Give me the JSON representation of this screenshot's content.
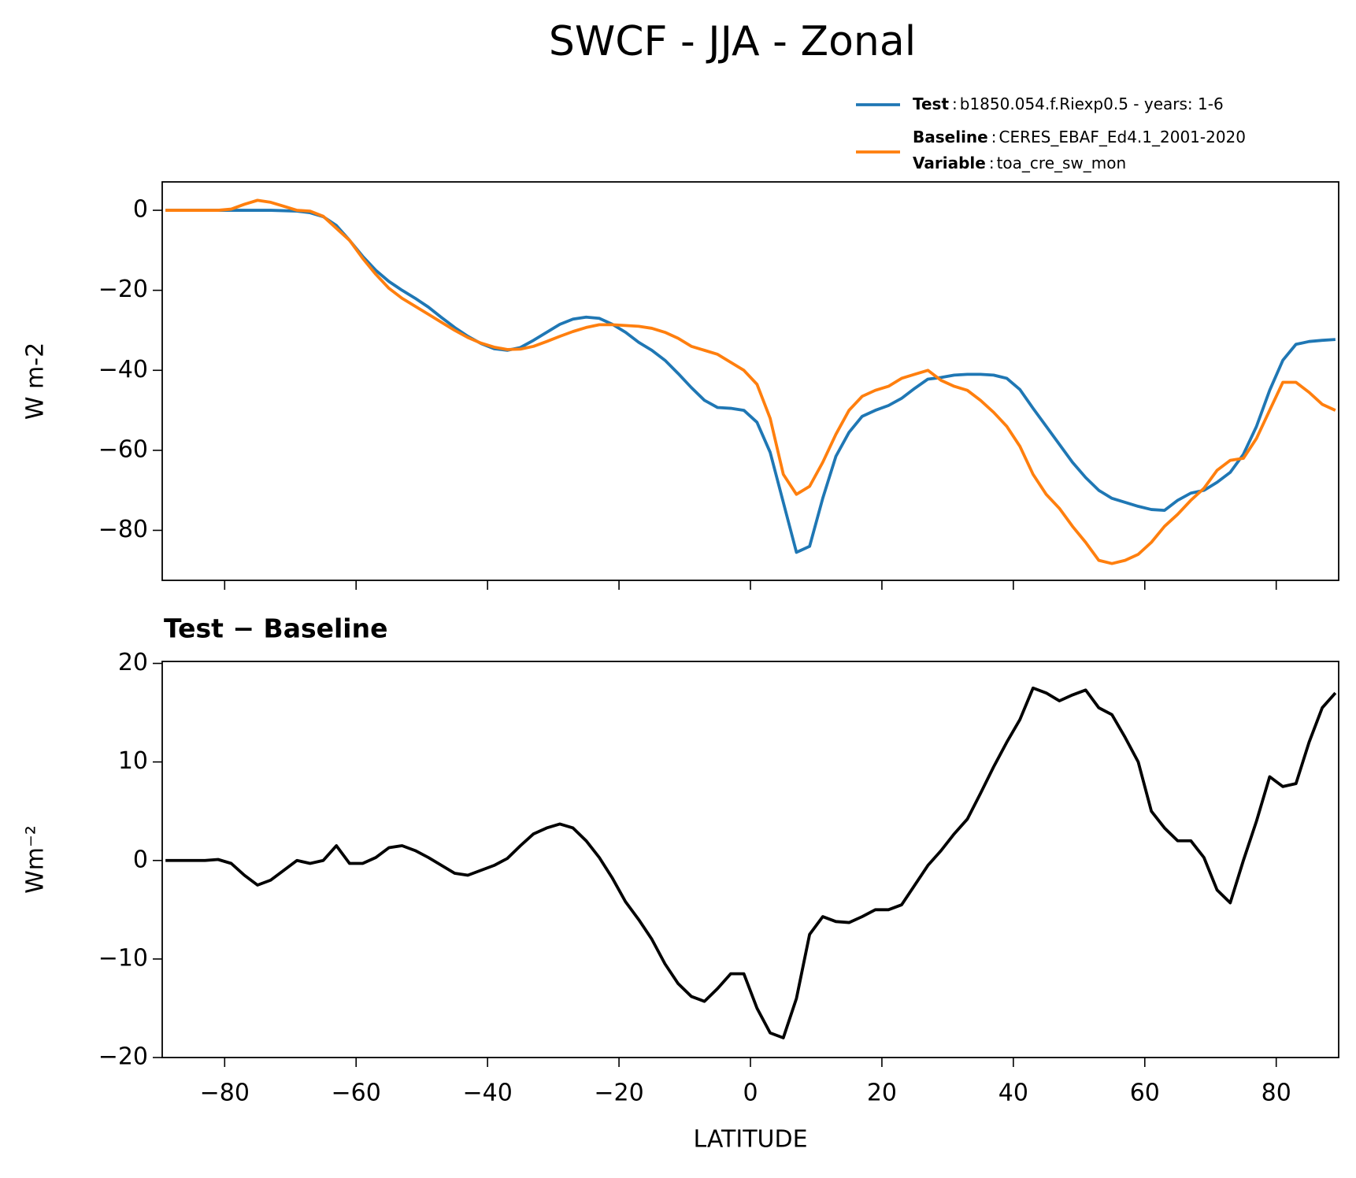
{
  "title": "SWCF - JJA - Zonal",
  "chart_data": [
    {
      "type": "line",
      "ylabel": "W m-2",
      "legend": {
        "separator": ":",
        "extra": {
          "name": "Variable",
          "description": "toa_cre_sw_mon"
        }
      },
      "x": [
        -89,
        -87,
        -85,
        -83,
        -81,
        -79,
        -77,
        -75,
        -73,
        -71,
        -69,
        -67,
        -65,
        -63,
        -61,
        -59,
        -57,
        -55,
        -53,
        -51,
        -49,
        -47,
        -45,
        -43,
        -41,
        -39,
        -37,
        -35,
        -33,
        -31,
        -29,
        -27,
        -25,
        -23,
        -21,
        -19,
        -17,
        -15,
        -13,
        -11,
        -9,
        -7,
        -5,
        -3,
        -1,
        1,
        3,
        5,
        7,
        9,
        11,
        13,
        15,
        17,
        19,
        21,
        23,
        25,
        27,
        29,
        31,
        33,
        35,
        37,
        39,
        41,
        43,
        45,
        47,
        49,
        51,
        53,
        55,
        57,
        59,
        61,
        63,
        65,
        67,
        69,
        71,
        73,
        75,
        77,
        79,
        81,
        83,
        85,
        87,
        89
      ],
      "series": [
        {
          "name": "Test",
          "description": "b1850.054.f.Riexp0.5 - years: 1-6",
          "color": "#1f77b4",
          "values": [
            0,
            0,
            0,
            0,
            0,
            0,
            0,
            0,
            0,
            -0.1,
            -0.2,
            -0.6,
            -1.6,
            -3.8,
            -7.5,
            -11.5,
            -15,
            -17.8,
            -20,
            -22,
            -24.2,
            -26.8,
            -29.3,
            -31.5,
            -33.3,
            -34.6,
            -35,
            -34.3,
            -32.5,
            -30.5,
            -28.5,
            -27.2,
            -26.7,
            -27,
            -28.5,
            -30.5,
            -33,
            -35,
            -37.5,
            -40.8,
            -44.3,
            -47.5,
            -49.3,
            -49.5,
            -50,
            -53,
            -60.5,
            -73,
            -85.5,
            -84,
            -72,
            -61.5,
            -55.5,
            -51.5,
            -50,
            -48.8,
            -47,
            -44.5,
            -42.2,
            -41.8,
            -41.2,
            -41,
            -41,
            -41.2,
            -42,
            -44.8,
            -49.5,
            -54,
            -58.5,
            -63,
            -66.8,
            -70,
            -72,
            -73,
            -74,
            -74.8,
            -75,
            -72.5,
            -70.7,
            -70,
            -68,
            -65.5,
            -61,
            -54,
            -45,
            -37.5,
            -33.5,
            -32.8,
            -32.5,
            -32.3
          ]
        },
        {
          "name": "Baseline",
          "description": "CERES_EBAF_Ed4.1_2001-2020",
          "color": "#ff7f0e",
          "values": [
            0,
            0,
            0,
            0,
            0,
            0.3,
            1.5,
            2.5,
            2,
            1,
            0,
            -0.2,
            -1.5,
            -4.5,
            -7.5,
            -12,
            -16,
            -19.5,
            -22,
            -24,
            -26,
            -28,
            -30,
            -31.8,
            -33.2,
            -34.2,
            -34.8,
            -34.7,
            -34,
            -32.8,
            -31.5,
            -30.3,
            -29.3,
            -28.6,
            -28.6,
            -28.8,
            -29,
            -29.5,
            -30.5,
            -32,
            -34,
            -35,
            -36,
            -38,
            -40,
            -43.5,
            -52,
            -66,
            -71,
            -69,
            -63,
            -56,
            -50,
            -46.5,
            -45,
            -44,
            -42,
            -41,
            -40,
            -42.5,
            -44,
            -45,
            -47.5,
            -50.5,
            -54,
            -59,
            -66,
            -71,
            -74.5,
            -79,
            -83,
            -87.5,
            -88.3,
            -87.5,
            -86,
            -83,
            -79,
            -76,
            -72.5,
            -69.5,
            -65,
            -62.5,
            -62,
            -57,
            -50,
            -43,
            -43,
            -45.5,
            -48.5,
            -50
          ]
        }
      ],
      "xlim": [
        -89.5,
        89.5
      ],
      "ylim": [
        -92.5,
        7.1
      ],
      "yticks": [
        {
          "value": -80,
          "label": "−80"
        },
        {
          "value": -60,
          "label": "−60"
        },
        {
          "value": -40,
          "label": "−40"
        },
        {
          "value": -20,
          "label": "−20"
        },
        0
      ]
    },
    {
      "type": "line",
      "title": "Test − Baseline",
      "xlabel": "LATITUDE",
      "ylabel": "Wm⁻²",
      "x": [
        -89,
        -87,
        -85,
        -83,
        -81,
        -79,
        -77,
        -75,
        -73,
        -71,
        -69,
        -67,
        -65,
        -63,
        -61,
        -59,
        -57,
        -55,
        -53,
        -51,
        -49,
        -47,
        -45,
        -43,
        -41,
        -39,
        -37,
        -35,
        -33,
        -31,
        -29,
        -27,
        -25,
        -23,
        -21,
        -19,
        -17,
        -15,
        -13,
        -11,
        -9,
        -7,
        -5,
        -3,
        -1,
        1,
        3,
        5,
        7,
        9,
        11,
        13,
        15,
        17,
        19,
        21,
        23,
        25,
        27,
        29,
        31,
        33,
        35,
        37,
        39,
        41,
        43,
        45,
        47,
        49,
        51,
        53,
        55,
        57,
        59,
        61,
        63,
        65,
        67,
        69,
        71,
        73,
        75,
        77,
        79,
        81,
        83,
        85,
        87,
        89
      ],
      "series": [
        {
          "color": "#000000",
          "values": [
            0,
            0,
            0,
            0,
            0.1,
            -0.3,
            -1.5,
            -2.5,
            -2,
            -1,
            0,
            -0.3,
            0,
            1.5,
            -0.3,
            -0.3,
            0.3,
            1.3,
            1.5,
            1,
            0.3,
            -0.5,
            -1.3,
            -1.5,
            -1,
            -0.5,
            0.2,
            1.5,
            2.7,
            3.3,
            3.7,
            3.3,
            2,
            0.3,
            -1.8,
            -4.2,
            -6,
            -8,
            -10.5,
            -12.5,
            -13.8,
            -14.3,
            -13,
            -11.5,
            -11.5,
            -15,
            -17.5,
            -18,
            -14,
            -7.5,
            -5.7,
            -6.2,
            -6.3,
            -5.7,
            -5,
            -5,
            -4.5,
            -2.5,
            -0.5,
            1,
            2.7,
            4.2,
            6.8,
            9.5,
            12,
            14.3,
            17.5,
            17,
            16.2,
            16.8,
            17.3,
            15.5,
            14.8,
            12.5,
            10,
            5,
            3.3,
            2,
            2,
            0.3,
            -3,
            -4.3,
            0,
            4,
            8.5,
            7.5,
            7.8,
            12,
            15.5,
            17
          ]
        }
      ],
      "xlim": [
        -89.5,
        89.5
      ],
      "ylim": [
        -20,
        20.2
      ],
      "xticks": [
        {
          "value": -80,
          "label": "−80"
        },
        {
          "value": -60,
          "label": "−60"
        },
        {
          "value": -40,
          "label": "−40"
        },
        {
          "value": -20,
          "label": "−20"
        },
        0,
        20,
        40,
        60,
        80
      ],
      "yticks": [
        {
          "value": -20,
          "label": "−20"
        },
        {
          "value": -10,
          "label": "−10"
        },
        0,
        10,
        20
      ]
    }
  ]
}
